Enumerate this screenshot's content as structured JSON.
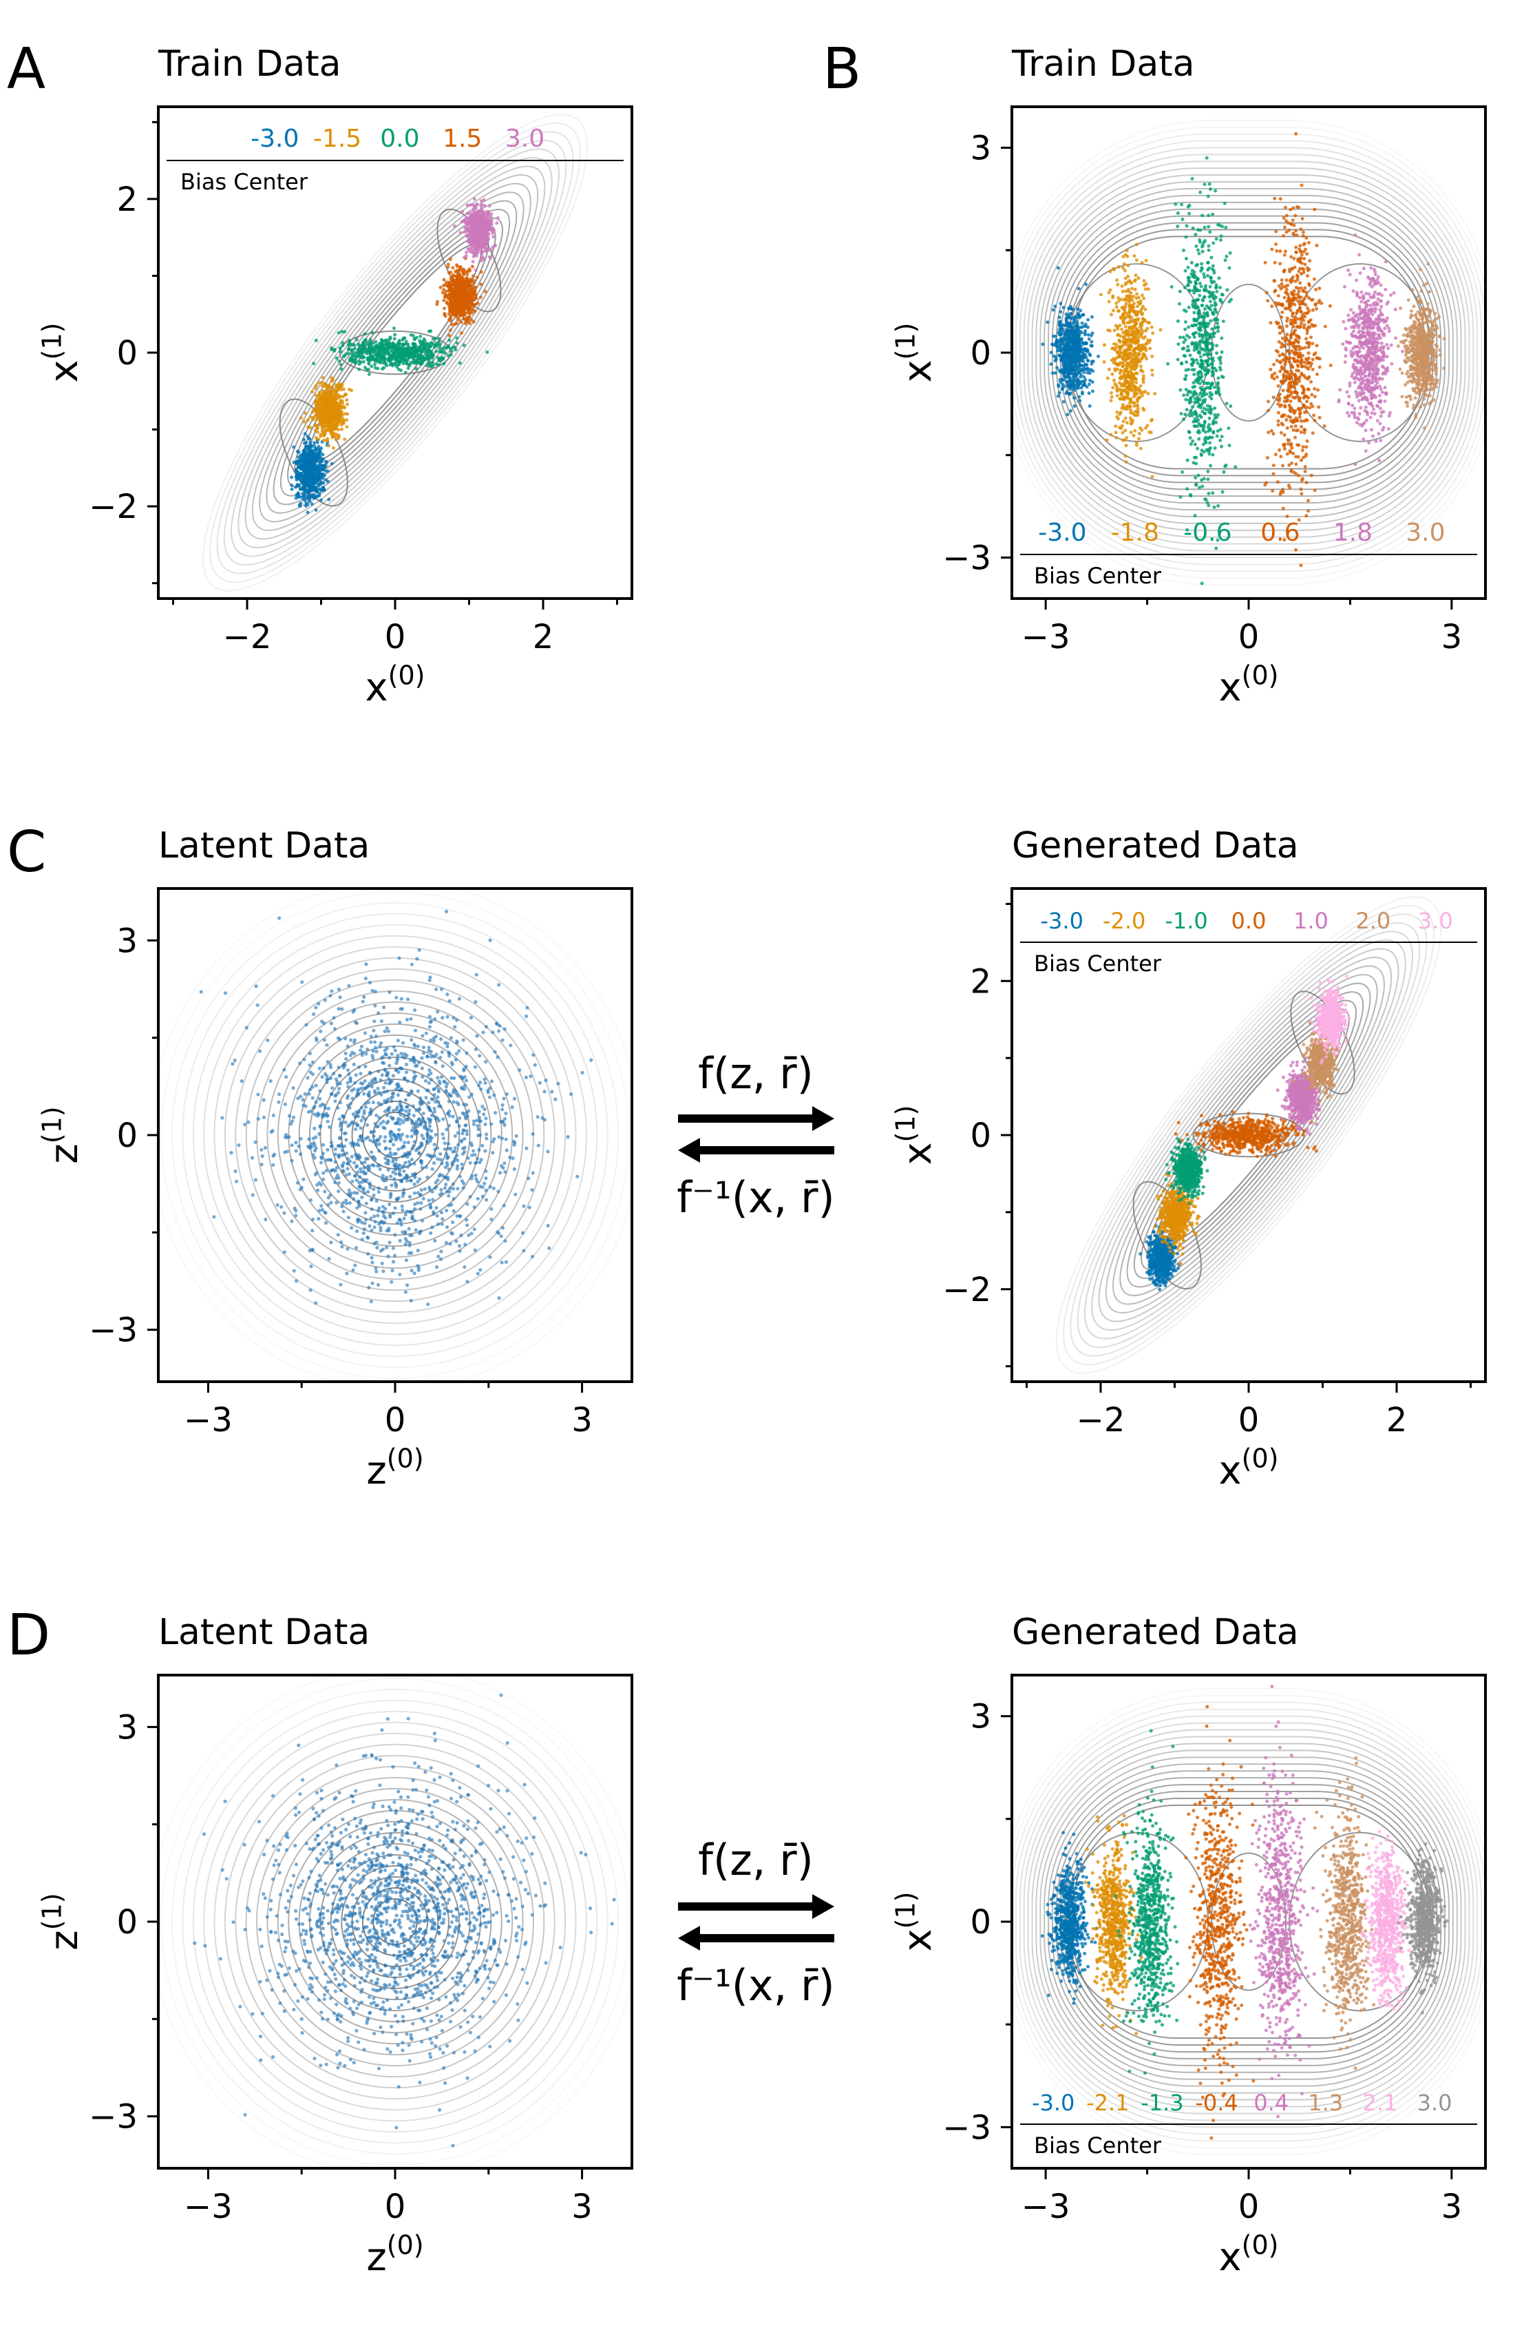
{
  "colors": {
    "blue": "#0173b2",
    "orange": "#de8f05",
    "green": "#029e73",
    "vermillion": "#d55e00",
    "pink": "#cc78bc",
    "tan": "#ca9161",
    "lightpink": "#fbafe4",
    "gray": "#949494",
    "contour": "#7a7a7a",
    "latentpoint": "#2b7bba"
  },
  "panel_labels": {
    "A": "A",
    "B": "B",
    "C": "C",
    "D": "D"
  },
  "arrows": {
    "C": {
      "forward": "f(z, r̄)",
      "inverse": "f⁻¹(x, r̄)"
    },
    "D": {
      "forward": "f(z, r̄)",
      "inverse": "f⁻¹(x, r̄)"
    }
  },
  "chart_data": [
    {
      "id": "A",
      "type": "scatter",
      "title": "Train Data",
      "xlabel": "x(0)",
      "ylabel": "x(1)",
      "xlim": [
        -3.2,
        3.2
      ],
      "ylim": [
        -3.2,
        3.2
      ],
      "xticks": [
        -2,
        0,
        2
      ],
      "yticks": [
        -2,
        0,
        2
      ],
      "landscape": "skewed_three_well",
      "legend": {
        "title": "Bias Center",
        "position": "top",
        "entries": [
          {
            "label": "-3.0",
            "color": "blue"
          },
          {
            "label": "-1.5",
            "color": "orange"
          },
          {
            "label": "0.0",
            "color": "green"
          },
          {
            "label": "1.5",
            "color": "vermillion"
          },
          {
            "label": "3.0",
            "color": "pink"
          }
        ]
      },
      "clusters": [
        {
          "bias": -3.0,
          "color": "blue",
          "center": [
            -1.15,
            -1.55
          ],
          "spread": [
            0.09,
            0.18
          ]
        },
        {
          "bias": -1.5,
          "color": "orange",
          "center": [
            -0.88,
            -0.75
          ],
          "spread": [
            0.1,
            0.16
          ]
        },
        {
          "bias": 0.0,
          "color": "green",
          "center": [
            0.0,
            0.0
          ],
          "spread": [
            0.35,
            0.1
          ]
        },
        {
          "bias": 1.5,
          "color": "vermillion",
          "center": [
            0.88,
            0.75
          ],
          "spread": [
            0.1,
            0.16
          ]
        },
        {
          "bias": 3.0,
          "color": "pink",
          "center": [
            1.13,
            1.58
          ],
          "spread": [
            0.08,
            0.15
          ]
        }
      ]
    },
    {
      "id": "B",
      "type": "scatter",
      "title": "Train Data",
      "xlabel": "x(0)",
      "ylabel": "x(1)",
      "xlim": [
        -3.5,
        3.5
      ],
      "ylim": [
        -3.6,
        3.6
      ],
      "xticks": [
        -3,
        0,
        3
      ],
      "yticks": [
        -3,
        0,
        3
      ],
      "landscape": "flat_four_well",
      "legend": {
        "title": "Bias Center",
        "position": "bottom",
        "entries": [
          {
            "label": "-3.0",
            "color": "blue"
          },
          {
            "label": "-1.8",
            "color": "orange"
          },
          {
            "label": "-0.6",
            "color": "green"
          },
          {
            "label": "0.6",
            "color": "vermillion"
          },
          {
            "label": "1.8",
            "color": "pink"
          },
          {
            "label": "3.0",
            "color": "tan"
          }
        ]
      },
      "clusters": [
        {
          "bias": -3.0,
          "color": "blue",
          "center": [
            -2.6,
            0.0
          ],
          "spread": [
            0.13,
            0.3
          ]
        },
        {
          "bias": -1.8,
          "color": "orange",
          "center": [
            -1.75,
            0.0
          ],
          "spread": [
            0.14,
            0.6
          ]
        },
        {
          "bias": -0.6,
          "color": "green",
          "center": [
            -0.68,
            0.0
          ],
          "spread": [
            0.16,
            1.0
          ]
        },
        {
          "bias": 0.6,
          "color": "vermillion",
          "center": [
            0.68,
            0.0
          ],
          "spread": [
            0.16,
            1.0
          ]
        },
        {
          "bias": 1.8,
          "color": "pink",
          "center": [
            1.78,
            0.0
          ],
          "spread": [
            0.14,
            0.55
          ]
        },
        {
          "bias": 3.0,
          "color": "tan",
          "center": [
            2.55,
            0.0
          ],
          "spread": [
            0.12,
            0.35
          ]
        }
      ]
    },
    {
      "id": "C-latent",
      "type": "scatter",
      "title": "Latent Data",
      "xlabel": "z(0)",
      "ylabel": "z(1)",
      "xlim": [
        -3.8,
        3.8
      ],
      "ylim": [
        -3.8,
        3.8
      ],
      "xticks": [
        -3,
        0,
        3
      ],
      "yticks": [
        -3,
        0,
        3
      ],
      "landscape": "gaussian",
      "clusters": [
        {
          "bias": null,
          "color": "latentpoint",
          "center": [
            0.0,
            0.0
          ],
          "spread": [
            1.0,
            1.0
          ]
        }
      ]
    },
    {
      "id": "C-generated",
      "type": "scatter",
      "title": "Generated Data",
      "xlabel": "x(0)",
      "ylabel": "x(1)",
      "xlim": [
        -3.2,
        3.2
      ],
      "ylim": [
        -3.2,
        3.2
      ],
      "xticks": [
        -2,
        0,
        2
      ],
      "yticks": [
        -2,
        0,
        2
      ],
      "landscape": "skewed_three_well",
      "legend": {
        "title": "Bias Center",
        "position": "top",
        "entries": [
          {
            "label": "-3.0",
            "color": "blue"
          },
          {
            "label": "-2.0",
            "color": "orange"
          },
          {
            "label": "-1.0",
            "color": "green"
          },
          {
            "label": "0.0",
            "color": "vermillion"
          },
          {
            "label": "1.0",
            "color": "pink"
          },
          {
            "label": "2.0",
            "color": "tan"
          },
          {
            "label": "3.0",
            "color": "lightpink"
          }
        ]
      },
      "clusters": [
        {
          "bias": -3.0,
          "color": "blue",
          "center": [
            -1.18,
            -1.6
          ],
          "spread": [
            0.08,
            0.15
          ]
        },
        {
          "bias": -2.0,
          "color": "orange",
          "center": [
            -0.98,
            -1.05
          ],
          "spread": [
            0.1,
            0.17
          ]
        },
        {
          "bias": -1.0,
          "color": "green",
          "center": [
            -0.82,
            -0.45
          ],
          "spread": [
            0.09,
            0.15
          ]
        },
        {
          "bias": 0.0,
          "color": "vermillion",
          "center": [
            0.0,
            0.0
          ],
          "spread": [
            0.3,
            0.1
          ]
        },
        {
          "bias": 1.0,
          "color": "pink",
          "center": [
            0.72,
            0.5
          ],
          "spread": [
            0.09,
            0.16
          ]
        },
        {
          "bias": 2.0,
          "color": "tan",
          "center": [
            0.98,
            0.95
          ],
          "spread": [
            0.09,
            0.16
          ]
        },
        {
          "bias": 3.0,
          "color": "lightpink",
          "center": [
            1.12,
            1.5
          ],
          "spread": [
            0.08,
            0.17
          ]
        }
      ]
    },
    {
      "id": "D-latent",
      "type": "scatter",
      "title": "Latent Data",
      "xlabel": "z(0)",
      "ylabel": "z(1)",
      "xlim": [
        -3.8,
        3.8
      ],
      "ylim": [
        -3.8,
        3.8
      ],
      "xticks": [
        -3,
        0,
        3
      ],
      "yticks": [
        -3,
        0,
        3
      ],
      "landscape": "gaussian",
      "clusters": [
        {
          "bias": null,
          "color": "latentpoint",
          "center": [
            0.0,
            0.0
          ],
          "spread": [
            1.0,
            1.0
          ]
        }
      ]
    },
    {
      "id": "D-generated",
      "type": "scatter",
      "title": "Generated Data",
      "xlabel": "x(0)",
      "ylabel": "x(1)",
      "xlim": [
        -3.5,
        3.5
      ],
      "ylim": [
        -3.6,
        3.6
      ],
      "xticks": [
        -3,
        0,
        3
      ],
      "yticks": [
        -3,
        0,
        3
      ],
      "landscape": "flat_four_well",
      "legend": {
        "title": "Bias Center",
        "position": "bottom",
        "entries": [
          {
            "label": "-3.0",
            "color": "blue"
          },
          {
            "label": "-2.1",
            "color": "orange"
          },
          {
            "label": "-1.3",
            "color": "green"
          },
          {
            "label": "-0.4",
            "color": "vermillion"
          },
          {
            "label": "0.4",
            "color": "pink"
          },
          {
            "label": "1.3",
            "color": "tan"
          },
          {
            "label": "2.1",
            "color": "lightpink"
          },
          {
            "label": "3.0",
            "color": "gray"
          }
        ]
      },
      "clusters": [
        {
          "bias": -3.0,
          "color": "blue",
          "center": [
            -2.65,
            0.0
          ],
          "spread": [
            0.12,
            0.4
          ]
        },
        {
          "bias": -2.1,
          "color": "orange",
          "center": [
            -2.0,
            0.0
          ],
          "spread": [
            0.13,
            0.55
          ]
        },
        {
          "bias": -1.3,
          "color": "green",
          "center": [
            -1.45,
            0.0
          ],
          "spread": [
            0.15,
            0.75
          ]
        },
        {
          "bias": -0.4,
          "color": "vermillion",
          "center": [
            -0.45,
            0.0
          ],
          "spread": [
            0.17,
            1.0
          ]
        },
        {
          "bias": 0.4,
          "color": "pink",
          "center": [
            0.45,
            0.0
          ],
          "spread": [
            0.17,
            1.0
          ]
        },
        {
          "bias": 1.3,
          "color": "tan",
          "center": [
            1.45,
            0.0
          ],
          "spread": [
            0.15,
            0.7
          ]
        },
        {
          "bias": 2.1,
          "color": "lightpink",
          "center": [
            2.05,
            0.0
          ],
          "spread": [
            0.13,
            0.5
          ]
        },
        {
          "bias": 3.0,
          "color": "gray",
          "center": [
            2.6,
            0.0
          ],
          "spread": [
            0.12,
            0.4
          ]
        }
      ]
    }
  ]
}
